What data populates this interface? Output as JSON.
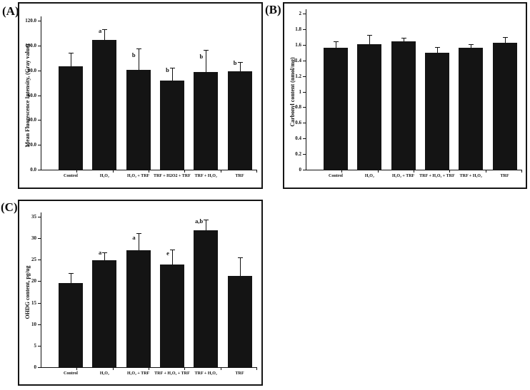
{
  "panel_labels": [
    "(A)",
    "(B)",
    "(C)"
  ],
  "colors": {
    "bar": "#141414",
    "axis": "#111111",
    "background": "#ffffff",
    "border": "#151515"
  },
  "chart_data": [
    {
      "panel": "A",
      "type": "bar",
      "title": "",
      "categories": [
        "Control",
        "H₂O₂",
        "H₂O₂ + TRF",
        "TRF + H2O2 + TRF",
        "TRF + H₂O₂",
        "TRF"
      ],
      "values": [
        83,
        104.5,
        80.5,
        72,
        78.5,
        79
      ],
      "error_up": [
        11,
        8.5,
        17,
        10,
        18,
        7.5
      ],
      "sig_letters": [
        "",
        "a",
        "b",
        "b",
        "b",
        "b"
      ],
      "ylabel": "Mean Fluorescence Intensity, (Gray value)",
      "xlabel": "",
      "ylim": [
        0,
        120
      ],
      "yticks": [
        0,
        20,
        40,
        60,
        80,
        100,
        120
      ],
      "ytick_labels": [
        "0.0",
        "20.0",
        "40.0",
        "60.0",
        "80.0",
        "100.0",
        "120.0"
      ],
      "bar_color": "#141414",
      "grid": false,
      "legend": null
    },
    {
      "panel": "B",
      "type": "bar",
      "title": "",
      "categories": [
        "Control",
        "H₂O₂",
        "H₂O₂ + TRF",
        "TRF + H₂O₂ + TRF",
        "TRF + H₂O₂",
        "TRF"
      ],
      "values": [
        1.56,
        1.61,
        1.64,
        1.5,
        1.56,
        1.63
      ],
      "error_up": [
        0.08,
        0.12,
        0.05,
        0.07,
        0.05,
        0.07
      ],
      "sig_letters": [
        "",
        "",
        "",
        "",
        "",
        ""
      ],
      "ylabel": "Carbonyl content (nmol/mg)",
      "xlabel": "",
      "ylim": [
        0,
        2
      ],
      "yticks": [
        0,
        0.2,
        0.4,
        0.6,
        0.8,
        1,
        1.2,
        1.4,
        1.6,
        1.8,
        2
      ],
      "ytick_labels": [
        "0",
        "0.2",
        "0.4",
        "0.6",
        "0.8",
        "1",
        "1.2",
        "1.4",
        "1.6",
        "1.8",
        "2"
      ],
      "bar_color": "#141414",
      "grid": false,
      "legend": null
    },
    {
      "panel": "C",
      "type": "bar",
      "title": "",
      "categories": [
        "Control",
        "H₂O₂",
        "H₂O₂ + TRF",
        "TRF + H₂O₂ + TRF",
        "TRF + H₂O₂",
        "TRF"
      ],
      "values": [
        19.6,
        24.8,
        27.2,
        23.9,
        31.8,
        21.3
      ],
      "error_up": [
        2.3,
        1.9,
        4.0,
        3.4,
        2.6,
        4.3
      ],
      "sig_letters": [
        "",
        "a",
        "a",
        "e",
        "a,b",
        ""
      ],
      "ylabel": "OHDG content, pg/ug",
      "xlabel": "",
      "ylim": [
        0,
        35
      ],
      "yticks": [
        0,
        5,
        10,
        15,
        20,
        25,
        30,
        35
      ],
      "ytick_labels": [
        "0",
        "5",
        "10",
        "15",
        "20",
        "25",
        "30",
        "35"
      ],
      "bar_color": "#141414",
      "grid": false,
      "legend": null
    }
  ]
}
